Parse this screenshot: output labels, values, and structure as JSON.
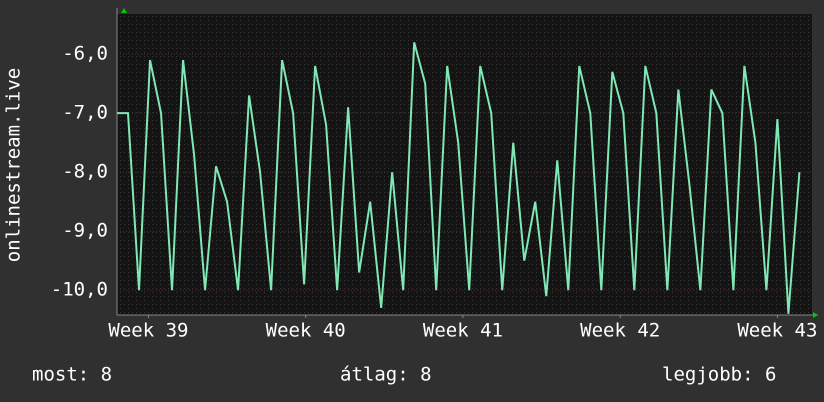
{
  "chart_data": {
    "type": "line",
    "ylabel": "onlinestream.live",
    "x": [
      39.3,
      39.37,
      39.44,
      39.51,
      39.58,
      39.65,
      39.72,
      39.79,
      39.86,
      39.93,
      40,
      40.07,
      40.14,
      40.21,
      40.28,
      40.35,
      40.42,
      40.49,
      40.56,
      40.63,
      40.7,
      40.77,
      40.84,
      40.91,
      40.98,
      41.05,
      41.12,
      41.19,
      41.26,
      41.33,
      41.4,
      41.47,
      41.54,
      41.61,
      41.68,
      41.75,
      41.82,
      41.89,
      41.96,
      42.03,
      42.1,
      42.17,
      42.24,
      42.31,
      42.38,
      42.45,
      42.52,
      42.59,
      42.66,
      42.73,
      42.8,
      42.87,
      42.94,
      43.01,
      43.08,
      43.15,
      43.22,
      43.29,
      43.36,
      43.43,
      43.5,
      43.57,
      43.64
    ],
    "series": [
      {
        "color": "#7fe8b4",
        "values": [
          -7,
          -7,
          -10,
          -6.1,
          -7,
          -10,
          -6.1,
          -7.7,
          -10,
          -7.9,
          -8.5,
          -10,
          -6.7,
          -8,
          -10,
          -6.1,
          -7,
          -9.9,
          -6.2,
          -7.2,
          -10,
          -6.9,
          -9.7,
          -8.5,
          -10.3,
          -8,
          -10,
          -5.8,
          -6.5,
          -10,
          -6.2,
          -7.5,
          -10,
          -6.2,
          -7,
          -10,
          -7.5,
          -9.5,
          -8.5,
          -10.1,
          -7.8,
          -10,
          -6.2,
          -7,
          -10,
          -6.3,
          -7,
          -10,
          -6.2,
          -7,
          -10,
          -6.6,
          -8.2,
          -10,
          -6.6,
          -7,
          -10,
          -6.2,
          -7.5,
          -10,
          -7.1,
          -10.4,
          -8
        ]
      }
    ],
    "xlim": [
      39.3,
      43.72
    ],
    "xticks": [
      {
        "value": 39.5,
        "label": "Week 39"
      },
      {
        "value": 40.5,
        "label": "Week 40"
      },
      {
        "value": 41.5,
        "label": "Week 41"
      },
      {
        "value": 42.5,
        "label": "Week 42"
      },
      {
        "value": 43.5,
        "label": "Week 43"
      }
    ],
    "ylim": [
      -10.42,
      -5.32
    ],
    "yticks": [
      {
        "value": -6,
        "label": "-6,0"
      },
      {
        "value": -7,
        "label": "-7,0"
      },
      {
        "value": -8,
        "label": "-8,0"
      },
      {
        "value": -9,
        "label": "-9,0"
      },
      {
        "value": -10,
        "label": "-10,0"
      }
    ],
    "grid": true,
    "footer": {
      "current": "most: 8",
      "average": "átlag: 8",
      "best": "legjobb: 6"
    }
  }
}
